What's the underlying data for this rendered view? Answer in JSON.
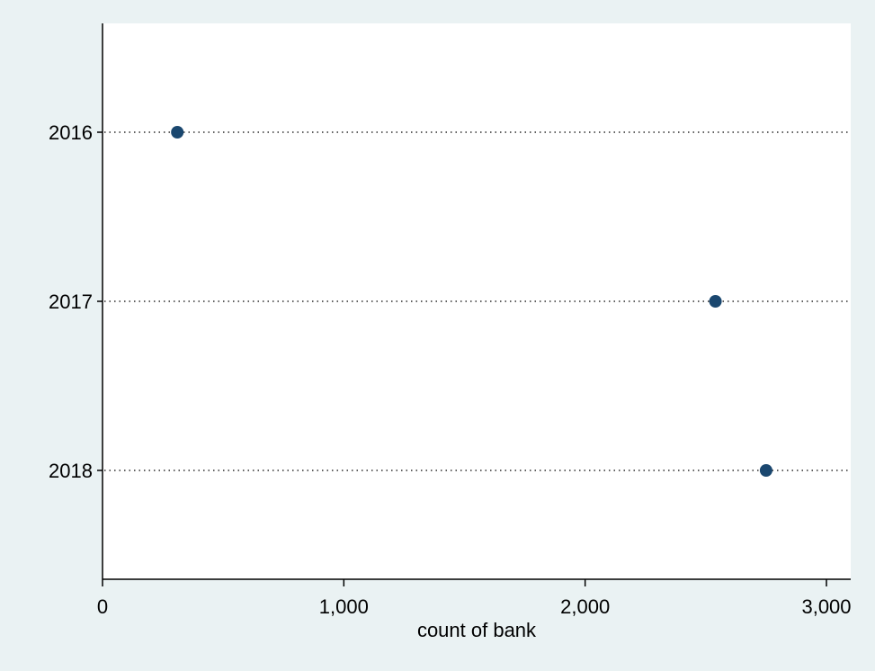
{
  "colors": {
    "background": "#eaf2f3",
    "plot_background": "#ffffff",
    "marker": "#1a476f",
    "axis": "#000000",
    "guide_line": "#000000"
  },
  "chart_data": {
    "type": "dot",
    "orientation": "horizontal",
    "categories": [
      "2016",
      "2017",
      "2018"
    ],
    "series": [
      {
        "values": [
          310,
          2540,
          2750
        ]
      }
    ],
    "xlabel": "count of bank",
    "ylabel": "",
    "xlim": [
      0,
      3100
    ],
    "xticks": [
      0,
      1000,
      2000,
      3000
    ],
    "xtick_labels": [
      "0",
      "1,000",
      "2,000",
      "3,000"
    ],
    "grid": false,
    "dotted_guide_lines": true,
    "legend": "none"
  }
}
